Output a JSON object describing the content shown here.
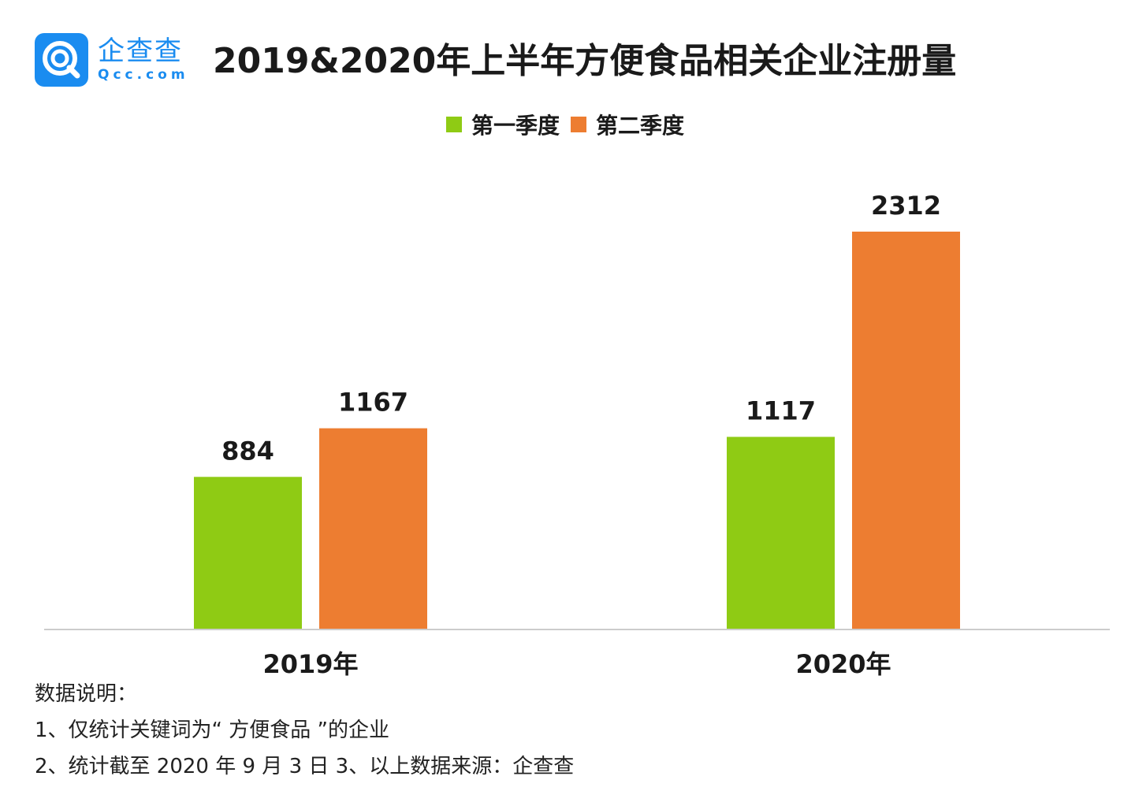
{
  "brand": {
    "name_cn": "企查查",
    "name_en": "Qcc.com"
  },
  "colors": {
    "brand": "#1a8cf0",
    "q1": "#8fcb14",
    "q2": "#ed7d31",
    "axis": "#cccccc"
  },
  "notes": {
    "heading": "数据说明：",
    "line1": "1、仅统计关键词为“ 方便食品 ”的企业",
    "line2": "2、统计截至 2020 年 9 月 3 日    3、以上数据来源：企查查"
  },
  "chart_data": {
    "type": "bar",
    "title": "2019&2020年上半年方便食品相关企业注册量",
    "categories": [
      "2019年",
      "2020年"
    ],
    "series": [
      {
        "name": "第一季度",
        "values": [
          884,
          1117
        ]
      },
      {
        "name": "第二季度",
        "values": [
          1167,
          2312
        ]
      }
    ],
    "xlabel": "",
    "ylabel": "",
    "ylim": [
      0,
      2312
    ],
    "grid": false,
    "legend": "top-center"
  }
}
